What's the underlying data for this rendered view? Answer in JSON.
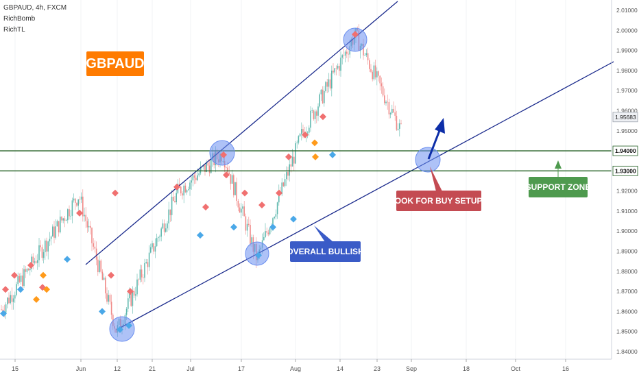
{
  "header": {
    "symbol_line": "GBPAUD, 4h, FXCM",
    "indicator_1": "RichBomb",
    "indicator_2": "RichTL"
  },
  "annotations": {
    "pair_label": "GBPAUD",
    "overall_label": "OVERALL BULLISH",
    "buy_label": "LOOK FOR BUY SETUPS",
    "support_label": "SUPPORT ZONE"
  },
  "colors": {
    "up_candle": "#5fb8ae",
    "down_candle": "#f08a88",
    "trendline": "#1a2a8c",
    "support_line": "#1e5b1e",
    "pair_label_bg": "#ff7b00",
    "overall_label_bg": "#3a5bc7",
    "buy_label_bg": "#c44b52",
    "support_label_bg": "#4e9a4e",
    "highlight_circle": "#6b8ff0",
    "diamond_red": "#f07070",
    "diamond_blue": "#4aa8e8",
    "diamond_orange": "#ff9a1a"
  },
  "chart_data": {
    "type": "candlestick",
    "x_ticks": [
      "15",
      "Jun",
      "12",
      "21",
      "Jul",
      "17",
      "Aug",
      "14",
      "23",
      "Sep",
      "18",
      "Oct",
      "16"
    ],
    "y_ticks": [
      "2.01000",
      "2.00000",
      "1.99000",
      "1.98000",
      "1.97000",
      "1.96000",
      "1.95000",
      "1.92000",
      "1.91000",
      "1.90000",
      "1.89000",
      "1.88000",
      "1.87000",
      "1.86000",
      "1.85000",
      "1.84000"
    ],
    "ylim": [
      1.838,
      2.013
    ],
    "current_price": "1.95683",
    "support_levels": [
      "1.94000",
      "1.93000"
    ],
    "approx_path": [
      {
        "x": "early May",
        "y": 1.86
      },
      {
        "x": "late May",
        "y": 1.918
      },
      {
        "x": "Jun 12",
        "y": 1.85
      },
      {
        "x": "late Jun",
        "y": 1.92
      },
      {
        "x": "Jul 10",
        "y": 1.939
      },
      {
        "x": "Jul 20",
        "y": 1.886
      },
      {
        "x": "Aug 3",
        "y": 1.948
      },
      {
        "x": "Aug 19",
        "y": 1.998
      },
      {
        "x": "Aug 28",
        "y": 1.95
      }
    ],
    "markers": {
      "red_diamonds": [
        1.871,
        1.878,
        1.883,
        1.872,
        1.909,
        1.919,
        1.878,
        1.87,
        1.922,
        1.912,
        1.938,
        1.928,
        1.919,
        1.913,
        1.919,
        1.937,
        1.948,
        1.957,
        1.998
      ],
      "blue_diamonds": [
        1.859,
        1.871,
        1.886,
        1.86,
        1.851,
        1.853,
        1.898,
        1.902,
        1.888,
        1.902,
        1.906,
        1.938
      ],
      "orange_diamonds": [
        1.866,
        1.871,
        1.878,
        1.944,
        1.937
      ]
    }
  }
}
